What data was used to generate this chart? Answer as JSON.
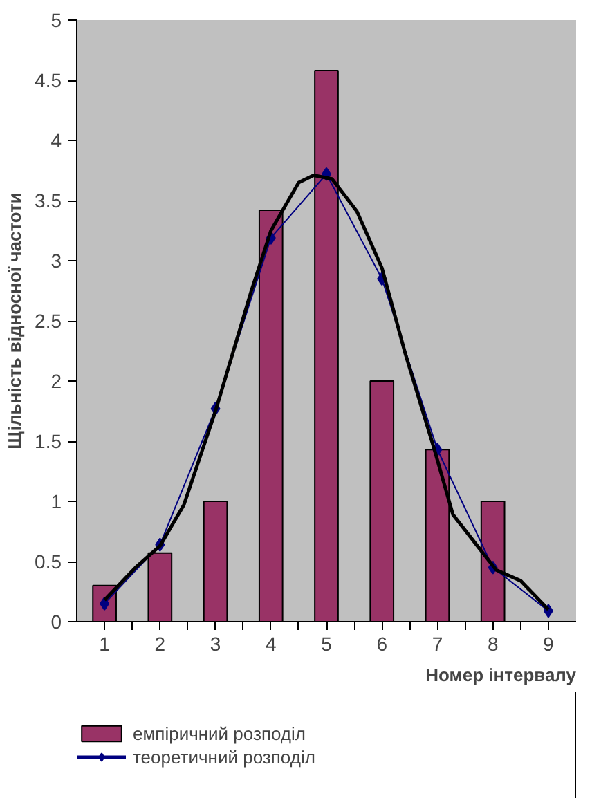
{
  "chart_data": {
    "type": "bar",
    "xlabel": "Номер інтервалу",
    "ylabel": "Щільність відносної частоти",
    "x": [
      1,
      2,
      3,
      4,
      5,
      6,
      7,
      8,
      9
    ],
    "series": [
      {
        "name": "емпіричний розподіл",
        "color": "#993366",
        "values": [
          0.3,
          0.57,
          1.0,
          3.42,
          4.58,
          2.0,
          1.43,
          1.0,
          null
        ]
      },
      {
        "name": "теоретичний розподіл",
        "type": "line",
        "color": "#000080",
        "marker": "diamond",
        "values": [
          0.15,
          0.64,
          1.77,
          3.19,
          3.72,
          2.85,
          1.43,
          0.45,
          0.09
        ]
      },
      {
        "type": "line",
        "color": "#000000",
        "marker": "none",
        "x": [
          1,
          1.56,
          2,
          2.43,
          3,
          3.64,
          4,
          4.5,
          4.77,
          5.1,
          5.55,
          6,
          6.42,
          6.94,
          7.28,
          7.72,
          8.06,
          8.5,
          9
        ],
        "values": [
          0.18,
          0.45,
          0.63,
          0.97,
          1.75,
          2.74,
          3.25,
          3.65,
          3.71,
          3.68,
          3.41,
          2.94,
          2.23,
          1.44,
          0.89,
          0.63,
          0.43,
          0.34,
          0.1
        ]
      }
    ],
    "xlim": [
      0.5,
      9.5
    ],
    "xticks": [
      1,
      2,
      3,
      4,
      5,
      6,
      7,
      8,
      9,
      {
        "value": 1.5,
        "label": null
      },
      {
        "value": 2.5,
        "label": null
      },
      {
        "value": 3.5,
        "label": null
      },
      {
        "value": 4.5,
        "label": null
      },
      {
        "value": 5.5,
        "label": null
      },
      {
        "value": 6.5,
        "label": null
      },
      {
        "value": 7.5,
        "label": null
      },
      {
        "value": 8.5,
        "label": null
      }
    ],
    "ylim": [
      0,
      5
    ],
    "yticks": [
      0,
      0.5,
      1,
      1.5,
      2,
      2.5,
      3,
      3.5,
      4,
      4.5,
      5
    ],
    "grid": false,
    "legend": "bottom"
  }
}
